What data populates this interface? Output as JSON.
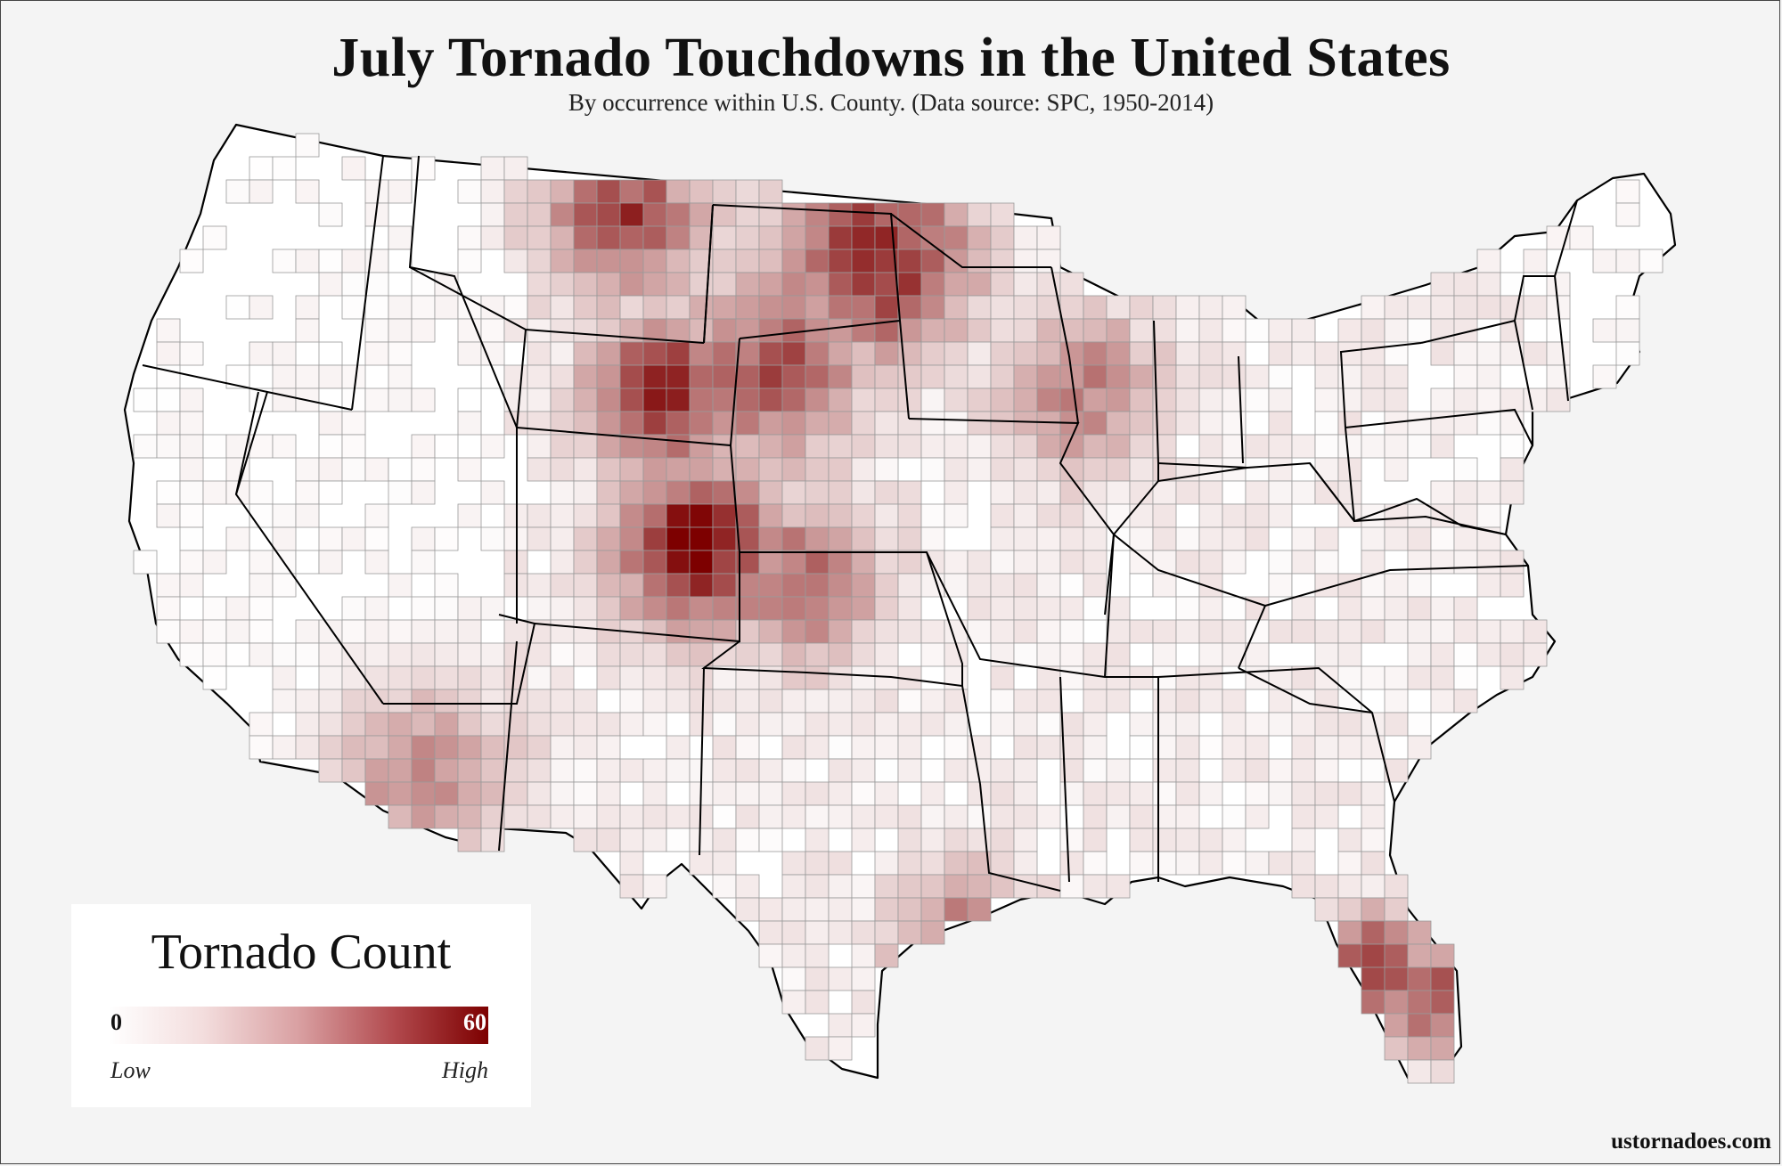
{
  "title": "July Tornado Touchdowns in the United States",
  "subtitle": "By occurrence within U.S. County. (Data source: SPC, 1950-2014)",
  "legend": {
    "title": "Tornado Count",
    "min_label": "0",
    "max_label": "60",
    "low_label": "Low",
    "high_label": "High",
    "min_value": 0,
    "max_value": 60
  },
  "credit": "ustornadoes.com",
  "colors": {
    "background": "#f4f4f4",
    "low": "#ffffff",
    "high": "#7d0000",
    "state_border": "#000000",
    "county_border": "#9a9a9a"
  },
  "hotspots": [
    {
      "region": "eastern Colorado",
      "intensity": 1.0
    },
    {
      "region": "Wyoming/Nebraska panhandle",
      "intensity": 0.9
    },
    {
      "region": "North Dakota",
      "intensity": 0.85
    },
    {
      "region": "eastern Montana",
      "intensity": 0.7
    },
    {
      "region": "South Dakota",
      "intensity": 0.65
    },
    {
      "region": "western Florida",
      "intensity": 0.8
    },
    {
      "region": "southeastern Florida",
      "intensity": 0.7
    },
    {
      "region": "western Kansas",
      "intensity": 0.55
    },
    {
      "region": "Wisconsin",
      "intensity": 0.5
    },
    {
      "region": "Arizona",
      "intensity": 0.45
    },
    {
      "region": "Texas gulf coast",
      "intensity": 0.45
    }
  ]
}
